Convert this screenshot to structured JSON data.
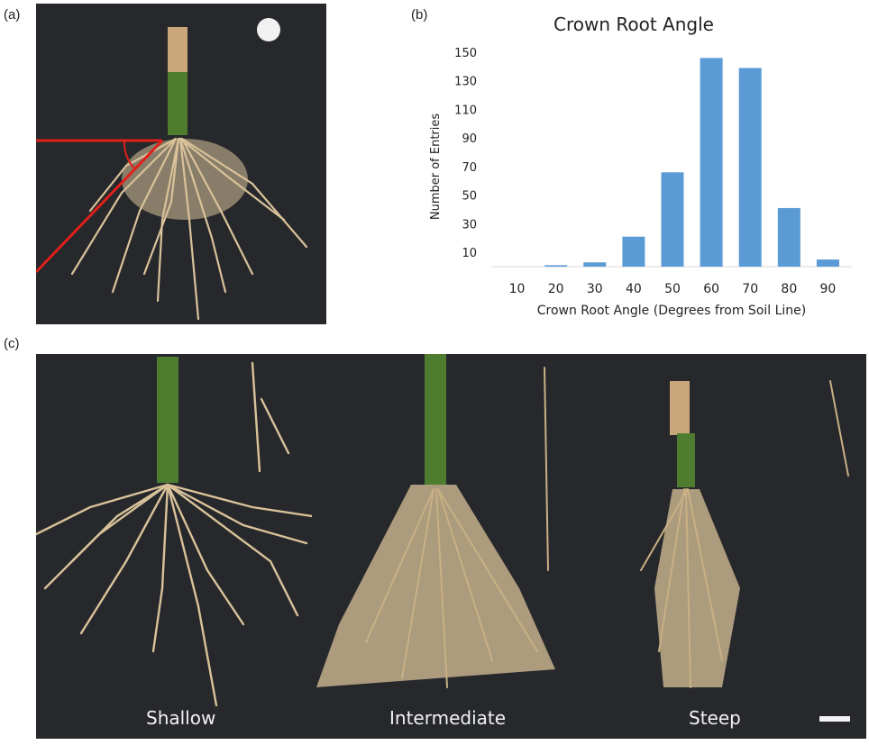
{
  "labels": {
    "a": "(a)",
    "b": "(b)",
    "c": "(c)"
  },
  "captions": {
    "shallow": "Shallow",
    "intermediate": "Intermediate",
    "steep": "Steep"
  },
  "colors": {
    "bar": "#5b9bd5",
    "photo_bg": "#26282b",
    "angle_line": "#e0201b",
    "root": "#d9c29a",
    "stem": "#4e7d2f"
  },
  "chart_data": {
    "type": "bar",
    "title": "Crown Root Angle",
    "xlabel": "Crown Root Angle (Degrees from Soil Line)",
    "ylabel": "Number of Entries",
    "categories": [
      "10",
      "20",
      "30",
      "40",
      "50",
      "60",
      "70",
      "80",
      "90"
    ],
    "values": [
      0,
      1,
      3,
      21,
      66,
      146,
      139,
      41,
      5
    ],
    "yticks": [
      "10",
      "30",
      "50",
      "70",
      "90",
      "110",
      "130",
      "150"
    ],
    "ylim": [
      0,
      150
    ],
    "grid": false,
    "legend": "none"
  }
}
